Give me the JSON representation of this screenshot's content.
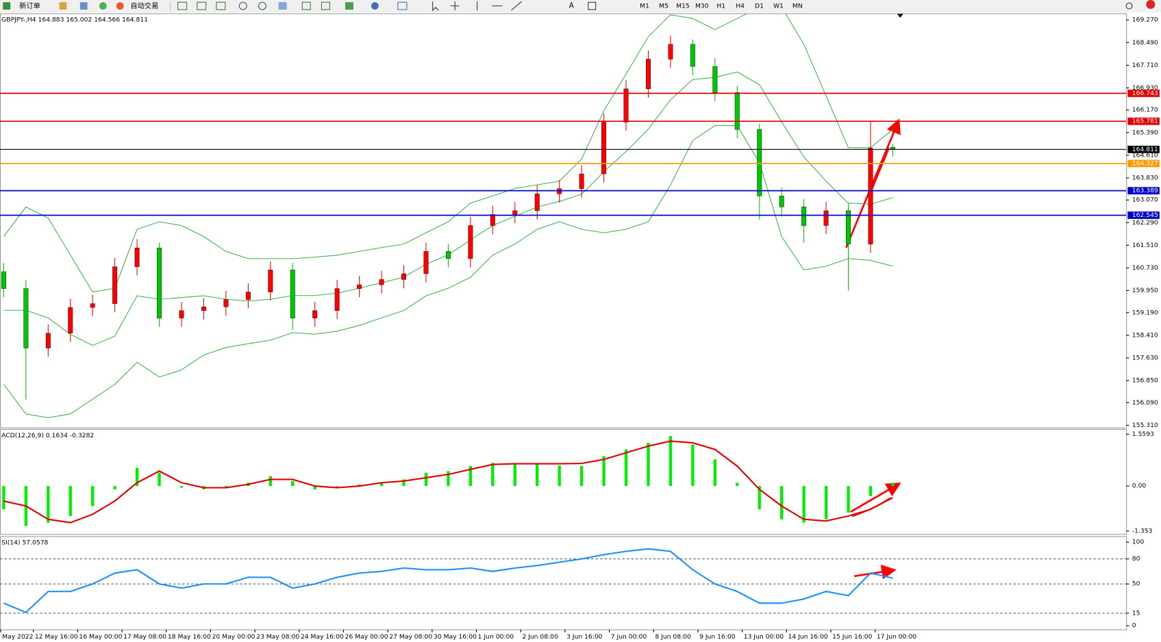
{
  "toolbar": {
    "buttons": [
      "新订单",
      "自动交易"
    ],
    "timeframes": [
      "M1",
      "M5",
      "M15",
      "M30",
      "H1",
      "H4",
      "D1",
      "W1",
      "MN"
    ]
  },
  "x_labels": [
    "May 2022",
    "12 May 16:00",
    "16 May 00:00",
    "17 May 08:00",
    "18 May 16:00",
    "20 May 00:00",
    "23 May 08:00",
    "24 May 16:00",
    "26 May 00:00",
    "27 May 08:00",
    "30 May 16:00",
    "1 Jun 00:00",
    "2 Jun 08:00",
    "3 Jun 16:00",
    "7 Jun 00:00",
    "8 Jun 08:00",
    "9 Jun 16:00",
    "13 Jun 00:00",
    "14 Jun 16:00",
    "15 Jun 16:00",
    "17 Jun 00:00"
  ],
  "chart_data": [
    {
      "type": "candlestick",
      "title": "GBPJPY-,H4  164.883 165.002 164.566 164.811",
      "ylim": [
        155.31,
        169.27
      ],
      "yticks": [
        {
          "value": 169.27,
          "label": "169.270"
        },
        {
          "value": 168.49,
          "label": "168.490"
        },
        {
          "value": 167.71,
          "label": "167.710"
        },
        {
          "value": 166.93,
          "label": "166.930"
        },
        {
          "value": 166.17,
          "label": "166.170"
        },
        {
          "value": 165.39,
          "label": "165.390"
        },
        {
          "value": 164.61,
          "label": "164.610"
        },
        {
          "value": 163.83,
          "label": "163.830"
        },
        {
          "value": 163.07,
          "label": "163.070"
        },
        {
          "value": 162.29,
          "label": "162.290"
        },
        {
          "value": 161.51,
          "label": "161.510"
        },
        {
          "value": 160.73,
          "label": "160.730"
        },
        {
          "value": 159.95,
          "label": "159.950"
        },
        {
          "value": 159.19,
          "label": "159.190"
        },
        {
          "value": 158.41,
          "label": "158.410"
        },
        {
          "value": 157.63,
          "label": "157.630"
        },
        {
          "value": 156.85,
          "label": "156.850"
        },
        {
          "value": 156.09,
          "label": "156.090"
        },
        {
          "value": 155.31,
          "label": "155.310"
        }
      ],
      "up_color": "#ff0000",
      "down_color": "#00c800",
      "open": [
        160.6,
        160.02,
        157.97,
        158.48,
        159.37,
        159.5,
        160.77,
        161.42,
        159.0,
        159.26,
        159.39,
        159.64,
        159.9,
        160.66,
        159.0,
        159.26,
        160.02,
        160.15,
        160.33,
        160.53,
        161.3,
        161.05,
        162.19,
        162.57,
        162.7,
        163.28,
        163.46,
        163.97,
        165.75,
        166.9,
        167.92,
        168.43,
        167.67,
        166.77,
        165.5,
        163.21,
        162.83,
        162.19,
        162.7,
        161.55,
        164.883
      ],
      "high": [
        160.9,
        160.32,
        158.78,
        159.67,
        159.8,
        161.07,
        161.72,
        161.6,
        159.56,
        159.69,
        159.94,
        160.2,
        160.96,
        160.9,
        159.56,
        160.32,
        160.45,
        160.63,
        160.83,
        161.6,
        161.55,
        162.49,
        162.87,
        163.0,
        163.58,
        163.76,
        164.27,
        166.05,
        167.2,
        168.22,
        168.73,
        168.6,
        167.95,
        167.0,
        165.7,
        163.5,
        163.1,
        163.0,
        162.95,
        165.8,
        165.002
      ],
      "low": [
        159.72,
        156.2,
        157.67,
        158.18,
        159.07,
        159.2,
        160.47,
        158.7,
        158.7,
        158.96,
        159.09,
        159.34,
        159.6,
        158.6,
        158.7,
        158.96,
        159.72,
        159.85,
        160.03,
        160.23,
        160.75,
        160.75,
        161.89,
        162.27,
        162.4,
        162.98,
        163.16,
        163.67,
        165.45,
        166.6,
        167.62,
        167.37,
        166.47,
        165.2,
        162.4,
        162.5,
        161.6,
        161.9,
        159.95,
        161.25,
        164.566
      ],
      "close": [
        160.02,
        157.97,
        158.48,
        159.37,
        159.5,
        160.77,
        161.42,
        159.0,
        159.26,
        159.39,
        159.64,
        159.9,
        160.66,
        159.0,
        159.26,
        160.02,
        160.15,
        160.33,
        160.53,
        161.3,
        161.05,
        162.19,
        162.57,
        162.7,
        163.28,
        163.46,
        163.97,
        165.75,
        166.9,
        167.92,
        168.43,
        167.67,
        166.77,
        165.5,
        163.21,
        162.83,
        162.19,
        162.7,
        161.55,
        164.86,
        164.811
      ],
      "series": [
        {
          "color": "#3cb44b",
          "values": [
            161.81,
            162.83,
            162.45,
            161.17,
            159.9,
            160.03,
            162.06,
            162.32,
            162.19,
            161.81,
            161.3,
            161.05,
            161.05,
            161.05,
            161.1,
            161.17,
            161.3,
            161.43,
            161.55,
            161.94,
            162.32,
            162.96,
            163.21,
            163.47,
            163.59,
            163.72,
            164.48,
            166.14,
            167.41,
            168.69,
            169.45,
            169.32,
            168.94,
            169.32,
            169.71,
            169.71,
            168.43,
            166.65,
            164.87,
            164.87,
            165.5
          ]
        },
        {
          "color": "#3cb44b",
          "values": [
            159.27,
            159.27,
            159.01,
            158.44,
            158.06,
            158.38,
            159.77,
            159.65,
            159.71,
            159.77,
            159.65,
            159.59,
            159.65,
            159.78,
            159.78,
            159.86,
            160.03,
            160.22,
            160.41,
            160.86,
            161.18,
            161.69,
            162.19,
            162.51,
            162.83,
            163.02,
            163.27,
            164.04,
            164.74,
            165.51,
            166.52,
            167.22,
            167.29,
            167.48,
            167.04,
            165.76,
            164.55,
            163.72,
            162.96,
            162.93,
            163.15
          ]
        },
        {
          "color": "#3cb44b",
          "values": [
            156.72,
            155.7,
            155.57,
            155.7,
            156.21,
            156.72,
            157.48,
            156.97,
            157.22,
            157.73,
            157.99,
            158.12,
            158.24,
            158.5,
            158.45,
            158.55,
            158.75,
            159.01,
            159.26,
            159.77,
            160.03,
            160.41,
            161.17,
            161.55,
            162.06,
            162.32,
            162.06,
            161.94,
            162.06,
            162.32,
            163.59,
            165.12,
            165.63,
            165.63,
            164.36,
            161.81,
            160.66,
            160.79,
            161.05,
            160.99,
            160.79
          ]
        }
      ],
      "levels": [
        {
          "value": 166.743,
          "color": "#e00000"
        },
        {
          "value": 165.781,
          "color": "#e00000"
        },
        {
          "value": 164.811,
          "color": "#000000"
        },
        {
          "value": 164.327,
          "color": "#ff9900"
        },
        {
          "value": 163.389,
          "color": "#0000cc"
        },
        {
          "value": 162.545,
          "color": "#0000cc"
        }
      ]
    },
    {
      "type": "bar",
      "title": "ACD(12,26,9) 0.1634 -0.3282",
      "ylim": [
        -1.353,
        1.5593
      ],
      "yticks": [
        1.5593,
        {
          "value": 0,
          "label": "0.00"
        },
        -1.353
      ],
      "color": "#00ee00",
      "values": [
        -0.7,
        -1.2,
        -1.1,
        -0.9,
        -0.6,
        -0.1,
        0.55,
        0.4,
        -0.05,
        -0.1,
        -0.05,
        0.1,
        0.3,
        0.15,
        -0.1,
        -0.05,
        0.05,
        0.1,
        0.2,
        0.4,
        0.45,
        0.6,
        0.7,
        0.65,
        0.65,
        0.62,
        0.6,
        0.9,
        1.1,
        1.3,
        1.5,
        1.25,
        0.8,
        0.1,
        -0.7,
        -1.0,
        -1.1,
        -1.0,
        -0.8,
        -0.3,
        0.1
      ],
      "series": [
        {
          "color": "#e00000",
          "values": [
            -0.45,
            -0.6,
            -1.0,
            -1.1,
            -0.85,
            -0.45,
            0.1,
            0.45,
            0.1,
            -0.05,
            -0.05,
            0.05,
            0.2,
            0.2,
            0,
            -0.05,
            0,
            0.1,
            0.15,
            0.25,
            0.35,
            0.5,
            0.65,
            0.67,
            0.67,
            0.67,
            0.68,
            0.8,
            1.0,
            1.2,
            1.35,
            1.3,
            1.1,
            0.6,
            -0.1,
            -0.6,
            -1.0,
            -1.05,
            -0.9,
            -0.7,
            -0.35
          ]
        }
      ]
    },
    {
      "type": "line",
      "title": "SI(14) 57.0578",
      "ylim": [
        0,
        100
      ],
      "yticks": [
        100,
        80,
        50,
        15,
        0
      ],
      "series": [
        {
          "color": "#1e90ff",
          "values": [
            27,
            16,
            41,
            41,
            50,
            63,
            67,
            50,
            45,
            50,
            50,
            58,
            58,
            45,
            50,
            58,
            63,
            65,
            69,
            67,
            67,
            69,
            65,
            69,
            72,
            76,
            80,
            85,
            89,
            92,
            89,
            67,
            50,
            41,
            27,
            27,
            32,
            41,
            36,
            63,
            57
          ]
        }
      ]
    }
  ]
}
